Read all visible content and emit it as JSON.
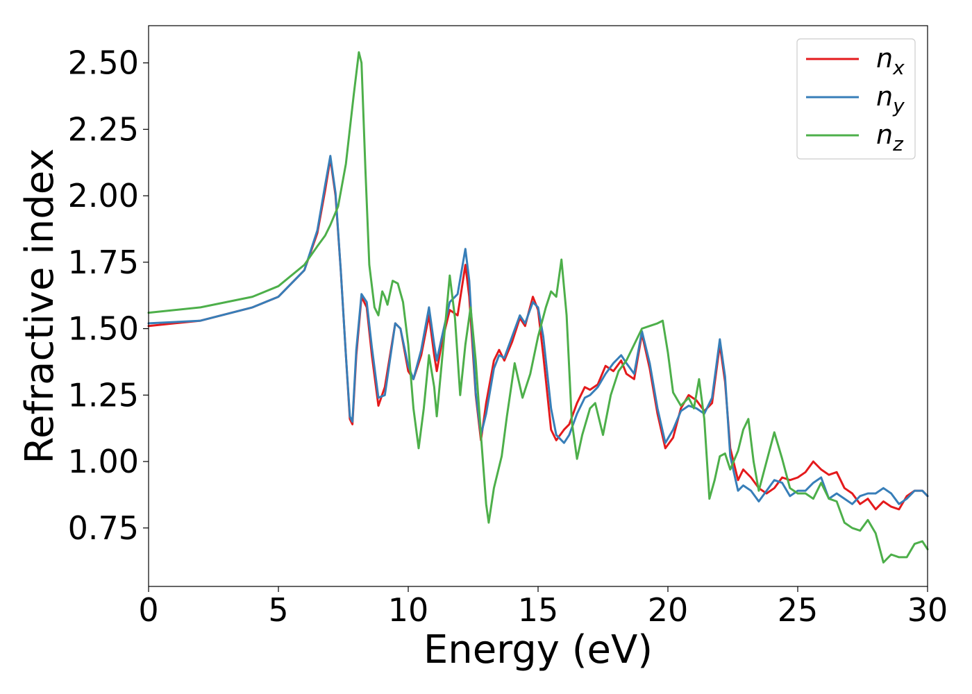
{
  "chart_data": {
    "type": "line",
    "xlabel": "Energy (eV)",
    "ylabel": "Refractive index",
    "xlim": [
      0,
      30
    ],
    "ylim": [
      0.53,
      2.64
    ],
    "xticks": [
      0,
      5,
      10,
      15,
      20,
      25,
      30
    ],
    "xtick_labels": [
      "0",
      "5",
      "10",
      "15",
      "20",
      "25",
      "30"
    ],
    "yticks": [
      0.75,
      1.0,
      1.25,
      1.5,
      1.75,
      2.0,
      2.25,
      2.5
    ],
    "ytick_labels": [
      "0.75",
      "1.00",
      "1.25",
      "1.50",
      "1.75",
      "2.00",
      "2.25",
      "2.50"
    ],
    "grid": false,
    "legend_position": "top-right",
    "series": [
      {
        "name": "n_x",
        "label_main": "n",
        "label_sub": "x",
        "color": "#e41a1c",
        "points": [
          [
            0,
            1.51
          ],
          [
            2,
            1.53
          ],
          [
            4,
            1.58
          ],
          [
            5,
            1.62
          ],
          [
            6,
            1.72
          ],
          [
            6.5,
            1.86
          ],
          [
            6.8,
            2.02
          ],
          [
            7.0,
            2.14
          ],
          [
            7.2,
            2.0
          ],
          [
            7.4,
            1.72
          ],
          [
            7.6,
            1.4
          ],
          [
            7.75,
            1.16
          ],
          [
            7.85,
            1.14
          ],
          [
            8.0,
            1.4
          ],
          [
            8.2,
            1.62
          ],
          [
            8.4,
            1.58
          ],
          [
            8.6,
            1.4
          ],
          [
            8.85,
            1.21
          ],
          [
            9.1,
            1.28
          ],
          [
            9.5,
            1.52
          ],
          [
            9.7,
            1.5
          ],
          [
            10.0,
            1.34
          ],
          [
            10.2,
            1.31
          ],
          [
            10.5,
            1.4
          ],
          [
            10.8,
            1.55
          ],
          [
            11.0,
            1.4
          ],
          [
            11.1,
            1.34
          ],
          [
            11.3,
            1.45
          ],
          [
            11.6,
            1.57
          ],
          [
            11.9,
            1.55
          ],
          [
            12.2,
            1.74
          ],
          [
            12.35,
            1.62
          ],
          [
            12.6,
            1.25
          ],
          [
            12.8,
            1.08
          ],
          [
            13.0,
            1.22
          ],
          [
            13.3,
            1.38
          ],
          [
            13.5,
            1.42
          ],
          [
            13.7,
            1.38
          ],
          [
            14.0,
            1.45
          ],
          [
            14.3,
            1.54
          ],
          [
            14.5,
            1.51
          ],
          [
            14.8,
            1.62
          ],
          [
            15.0,
            1.57
          ],
          [
            15.2,
            1.4
          ],
          [
            15.5,
            1.12
          ],
          [
            15.7,
            1.08
          ],
          [
            16.0,
            1.12
          ],
          [
            16.2,
            1.14
          ],
          [
            16.5,
            1.22
          ],
          [
            16.8,
            1.28
          ],
          [
            17.0,
            1.27
          ],
          [
            17.3,
            1.29
          ],
          [
            17.6,
            1.36
          ],
          [
            17.9,
            1.34
          ],
          [
            18.2,
            1.38
          ],
          [
            18.4,
            1.33
          ],
          [
            18.7,
            1.31
          ],
          [
            19.0,
            1.48
          ],
          [
            19.3,
            1.35
          ],
          [
            19.6,
            1.18
          ],
          [
            19.9,
            1.05
          ],
          [
            20.2,
            1.09
          ],
          [
            20.5,
            1.2
          ],
          [
            20.8,
            1.25
          ],
          [
            21.1,
            1.23
          ],
          [
            21.4,
            1.19
          ],
          [
            21.7,
            1.22
          ],
          [
            22.0,
            1.44
          ],
          [
            22.2,
            1.3
          ],
          [
            22.4,
            1.05
          ],
          [
            22.7,
            0.93
          ],
          [
            22.9,
            0.97
          ],
          [
            23.2,
            0.94
          ],
          [
            23.5,
            0.9
          ],
          [
            23.8,
            0.88
          ],
          [
            24.1,
            0.9
          ],
          [
            24.4,
            0.94
          ],
          [
            24.7,
            0.93
          ],
          [
            25.0,
            0.94
          ],
          [
            25.3,
            0.96
          ],
          [
            25.6,
            1.0
          ],
          [
            25.9,
            0.97
          ],
          [
            26.2,
            0.95
          ],
          [
            26.5,
            0.96
          ],
          [
            26.8,
            0.9
          ],
          [
            27.1,
            0.88
          ],
          [
            27.4,
            0.84
          ],
          [
            27.7,
            0.86
          ],
          [
            28.0,
            0.82
          ],
          [
            28.3,
            0.85
          ],
          [
            28.6,
            0.83
          ],
          [
            28.9,
            0.82
          ],
          [
            29.2,
            0.87
          ],
          [
            29.5,
            0.89
          ],
          [
            29.8,
            0.89
          ],
          [
            30.0,
            0.87
          ]
        ]
      },
      {
        "name": "n_y",
        "label_main": "n",
        "label_sub": "y",
        "color": "#377eb8",
        "points": [
          [
            0,
            1.52
          ],
          [
            2,
            1.53
          ],
          [
            4,
            1.58
          ],
          [
            5,
            1.62
          ],
          [
            6,
            1.72
          ],
          [
            6.5,
            1.87
          ],
          [
            6.8,
            2.04
          ],
          [
            7.0,
            2.15
          ],
          [
            7.2,
            2.01
          ],
          [
            7.4,
            1.72
          ],
          [
            7.6,
            1.4
          ],
          [
            7.75,
            1.17
          ],
          [
            7.85,
            1.15
          ],
          [
            8.0,
            1.42
          ],
          [
            8.2,
            1.63
          ],
          [
            8.4,
            1.6
          ],
          [
            8.6,
            1.43
          ],
          [
            8.85,
            1.24
          ],
          [
            9.1,
            1.25
          ],
          [
            9.5,
            1.52
          ],
          [
            9.7,
            1.5
          ],
          [
            10.0,
            1.36
          ],
          [
            10.2,
            1.31
          ],
          [
            10.5,
            1.42
          ],
          [
            10.8,
            1.58
          ],
          [
            11.0,
            1.44
          ],
          [
            11.1,
            1.38
          ],
          [
            11.3,
            1.47
          ],
          [
            11.6,
            1.6
          ],
          [
            11.9,
            1.63
          ],
          [
            12.2,
            1.8
          ],
          [
            12.35,
            1.68
          ],
          [
            12.6,
            1.26
          ],
          [
            12.8,
            1.1
          ],
          [
            13.0,
            1.18
          ],
          [
            13.3,
            1.35
          ],
          [
            13.5,
            1.4
          ],
          [
            13.7,
            1.39
          ],
          [
            14.0,
            1.47
          ],
          [
            14.3,
            1.55
          ],
          [
            14.5,
            1.52
          ],
          [
            14.8,
            1.6
          ],
          [
            15.0,
            1.58
          ],
          [
            15.2,
            1.47
          ],
          [
            15.5,
            1.2
          ],
          [
            15.7,
            1.1
          ],
          [
            16.0,
            1.07
          ],
          [
            16.2,
            1.1
          ],
          [
            16.5,
            1.18
          ],
          [
            16.8,
            1.24
          ],
          [
            17.0,
            1.25
          ],
          [
            17.3,
            1.28
          ],
          [
            17.6,
            1.33
          ],
          [
            17.9,
            1.37
          ],
          [
            18.2,
            1.4
          ],
          [
            18.4,
            1.37
          ],
          [
            18.7,
            1.33
          ],
          [
            19.0,
            1.49
          ],
          [
            19.3,
            1.37
          ],
          [
            19.6,
            1.2
          ],
          [
            19.9,
            1.07
          ],
          [
            20.2,
            1.12
          ],
          [
            20.5,
            1.19
          ],
          [
            20.8,
            1.21
          ],
          [
            21.1,
            1.2
          ],
          [
            21.4,
            1.18
          ],
          [
            21.7,
            1.24
          ],
          [
            22.0,
            1.46
          ],
          [
            22.2,
            1.32
          ],
          [
            22.4,
            1.02
          ],
          [
            22.7,
            0.89
          ],
          [
            22.9,
            0.91
          ],
          [
            23.2,
            0.89
          ],
          [
            23.5,
            0.85
          ],
          [
            23.8,
            0.89
          ],
          [
            24.1,
            0.93
          ],
          [
            24.4,
            0.92
          ],
          [
            24.7,
            0.87
          ],
          [
            25.0,
            0.89
          ],
          [
            25.3,
            0.89
          ],
          [
            25.6,
            0.92
          ],
          [
            25.9,
            0.94
          ],
          [
            26.2,
            0.86
          ],
          [
            26.5,
            0.88
          ],
          [
            26.8,
            0.86
          ],
          [
            27.1,
            0.84
          ],
          [
            27.4,
            0.87
          ],
          [
            27.7,
            0.88
          ],
          [
            28.0,
            0.88
          ],
          [
            28.3,
            0.9
          ],
          [
            28.6,
            0.88
          ],
          [
            28.9,
            0.84
          ],
          [
            29.2,
            0.86
          ],
          [
            29.5,
            0.89
          ],
          [
            29.8,
            0.89
          ],
          [
            30.0,
            0.87
          ]
        ]
      },
      {
        "name": "n_z",
        "label_main": "n",
        "label_sub": "z",
        "color": "#4daf4a",
        "points": [
          [
            0,
            1.56
          ],
          [
            2,
            1.58
          ],
          [
            4,
            1.62
          ],
          [
            5,
            1.66
          ],
          [
            6,
            1.74
          ],
          [
            6.5,
            1.81
          ],
          [
            6.8,
            1.85
          ],
          [
            7.0,
            1.89
          ],
          [
            7.3,
            1.96
          ],
          [
            7.6,
            2.12
          ],
          [
            7.9,
            2.38
          ],
          [
            8.1,
            2.54
          ],
          [
            8.2,
            2.5
          ],
          [
            8.35,
            2.1
          ],
          [
            8.5,
            1.74
          ],
          [
            8.7,
            1.58
          ],
          [
            8.85,
            1.55
          ],
          [
            9.0,
            1.64
          ],
          [
            9.1,
            1.62
          ],
          [
            9.2,
            1.59
          ],
          [
            9.4,
            1.68
          ],
          [
            9.6,
            1.67
          ],
          [
            9.8,
            1.6
          ],
          [
            10.0,
            1.44
          ],
          [
            10.2,
            1.2
          ],
          [
            10.4,
            1.05
          ],
          [
            10.6,
            1.2
          ],
          [
            10.8,
            1.4
          ],
          [
            11.0,
            1.28
          ],
          [
            11.1,
            1.17
          ],
          [
            11.3,
            1.38
          ],
          [
            11.6,
            1.7
          ],
          [
            11.8,
            1.54
          ],
          [
            12.0,
            1.25
          ],
          [
            12.2,
            1.44
          ],
          [
            12.4,
            1.58
          ],
          [
            12.6,
            1.38
          ],
          [
            12.8,
            1.1
          ],
          [
            13.0,
            0.84
          ],
          [
            13.1,
            0.77
          ],
          [
            13.3,
            0.9
          ],
          [
            13.6,
            1.02
          ],
          [
            13.8,
            1.17
          ],
          [
            14.1,
            1.37
          ],
          [
            14.4,
            1.24
          ],
          [
            14.7,
            1.33
          ],
          [
            15.0,
            1.47
          ],
          [
            15.3,
            1.58
          ],
          [
            15.5,
            1.64
          ],
          [
            15.7,
            1.62
          ],
          [
            15.9,
            1.76
          ],
          [
            16.1,
            1.55
          ],
          [
            16.3,
            1.15
          ],
          [
            16.5,
            1.01
          ],
          [
            16.7,
            1.1
          ],
          [
            17.0,
            1.2
          ],
          [
            17.2,
            1.22
          ],
          [
            17.5,
            1.1
          ],
          [
            17.8,
            1.25
          ],
          [
            18.1,
            1.34
          ],
          [
            18.4,
            1.38
          ],
          [
            18.7,
            1.44
          ],
          [
            19.0,
            1.5
          ],
          [
            19.3,
            1.51
          ],
          [
            19.6,
            1.52
          ],
          [
            19.8,
            1.53
          ],
          [
            20.0,
            1.41
          ],
          [
            20.2,
            1.26
          ],
          [
            20.5,
            1.21
          ],
          [
            20.8,
            1.24
          ],
          [
            21.0,
            1.2
          ],
          [
            21.2,
            1.31
          ],
          [
            21.4,
            1.16
          ],
          [
            21.6,
            0.86
          ],
          [
            21.8,
            0.93
          ],
          [
            22.0,
            1.02
          ],
          [
            22.2,
            1.03
          ],
          [
            22.4,
            0.97
          ],
          [
            22.7,
            1.04
          ],
          [
            22.9,
            1.12
          ],
          [
            23.1,
            1.16
          ],
          [
            23.3,
            1.0
          ],
          [
            23.5,
            0.89
          ],
          [
            23.8,
            1.0
          ],
          [
            24.1,
            1.11
          ],
          [
            24.4,
            1.01
          ],
          [
            24.7,
            0.9
          ],
          [
            25.0,
            0.88
          ],
          [
            25.3,
            0.88
          ],
          [
            25.6,
            0.86
          ],
          [
            25.9,
            0.92
          ],
          [
            26.2,
            0.86
          ],
          [
            26.5,
            0.85
          ],
          [
            26.8,
            0.77
          ],
          [
            27.1,
            0.75
          ],
          [
            27.4,
            0.74
          ],
          [
            27.7,
            0.78
          ],
          [
            28.0,
            0.73
          ],
          [
            28.3,
            0.62
          ],
          [
            28.6,
            0.65
          ],
          [
            28.9,
            0.64
          ],
          [
            29.2,
            0.64
          ],
          [
            29.5,
            0.69
          ],
          [
            29.8,
            0.7
          ],
          [
            30.0,
            0.67
          ]
        ]
      }
    ]
  }
}
